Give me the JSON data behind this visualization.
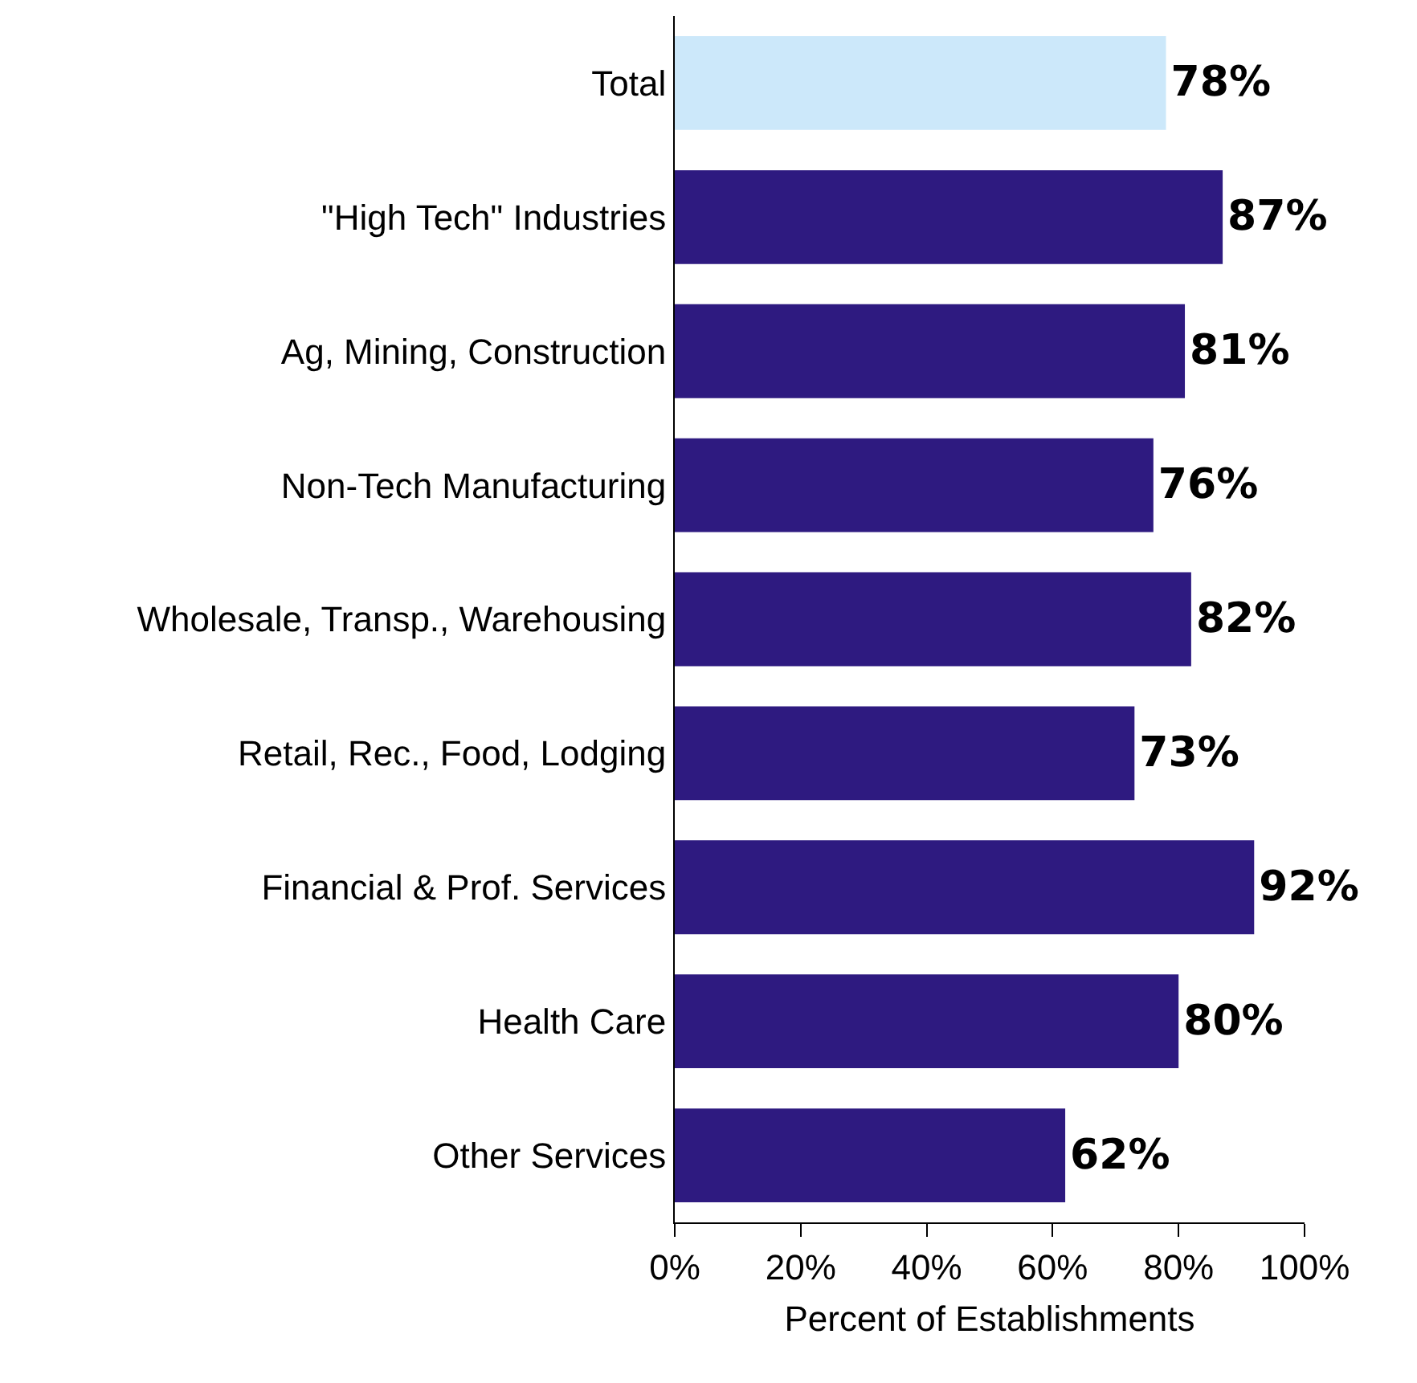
{
  "chart_data": {
    "type": "bar",
    "orientation": "horizontal",
    "xlabel": "Percent of Establishments",
    "categories": [
      "Total",
      "\"High Tech\" Industries",
      "Ag, Mining, Construction",
      "Non-Tech Manufacturing",
      "Wholesale, Transp., Warehousing",
      "Retail, Rec., Food, Lodging",
      "Financial & Prof. Services",
      "Health Care",
      "Other Services"
    ],
    "values": [
      78,
      87,
      81,
      76,
      82,
      73,
      92,
      80,
      62
    ],
    "colors": [
      "#cce8fa",
      "#2e1a80",
      "#2e1a80",
      "#2e1a80",
      "#2e1a80",
      "#2e1a80",
      "#2e1a80",
      "#2e1a80",
      "#2e1a80"
    ],
    "value_labels": [
      "78%",
      "87%",
      "81%",
      "76%",
      "82%",
      "73%",
      "92%",
      "80%",
      "62%"
    ],
    "xlim": [
      0,
      100
    ],
    "xticks": [
      {
        "value": 0,
        "label": "0%"
      },
      {
        "value": 20,
        "label": "20%"
      },
      {
        "value": 40,
        "label": "40%"
      },
      {
        "value": 60,
        "label": "60%"
      },
      {
        "value": 80,
        "label": "80%"
      },
      {
        "value": 100,
        "label": "100%"
      }
    ]
  }
}
